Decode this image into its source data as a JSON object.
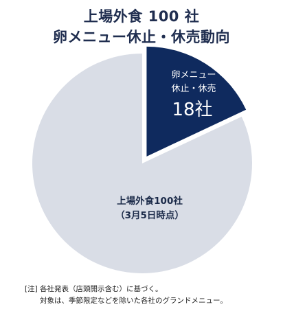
{
  "chart_data": {
    "type": "pie",
    "title": "上場外食 100 社",
    "subtitle": "卵メニュー休止・休売動向",
    "slices": [
      {
        "label_line1": "卵メニュー",
        "label_line2": "休止・休売",
        "value_text": "18社",
        "value": 18,
        "color": "#0f2a5e",
        "exploded": true
      },
      {
        "label_line1": "上場外食100社",
        "label_line2": "（3月5日時点）",
        "value": 82,
        "color": "#d9dde6",
        "exploded": false
      }
    ]
  },
  "footnote": {
    "line1": "[注] 各社発表（店頭開示含む）に基づく。",
    "line2": "対象は、季節限定などを除いた各社のグランドメニュー。"
  }
}
